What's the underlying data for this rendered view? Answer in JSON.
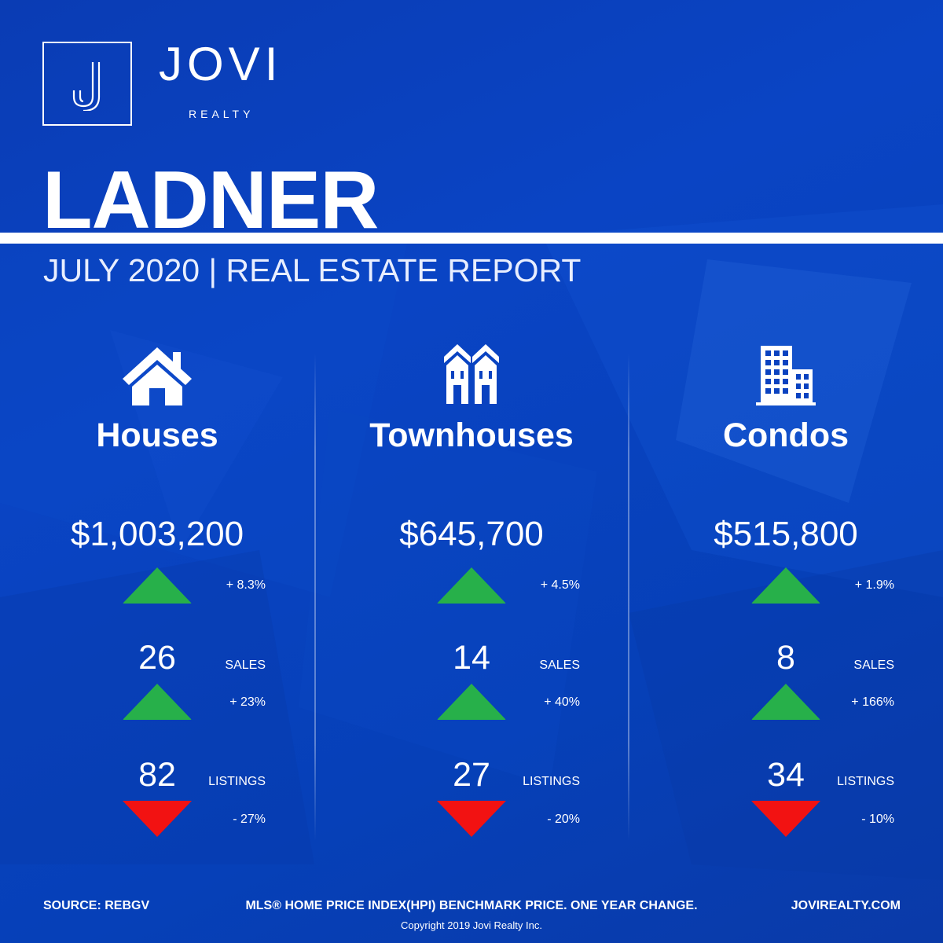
{
  "brand": {
    "name": "JOVI",
    "sub": "REALTY"
  },
  "title": "LADNER",
  "subtitle": "JULY 2020 | REAL ESTATE REPORT",
  "colors": {
    "background": "#0a3cb4",
    "up": "#27b04a",
    "down": "#f21212",
    "text": "#ffffff"
  },
  "columns": [
    {
      "icon": "house-icon",
      "name": "Houses",
      "price": "$1,003,200",
      "price_change": "+ 8.3%",
      "price_trend": "up",
      "sales": "26",
      "sales_label": "SALES",
      "sales_change": "+ 23%",
      "sales_trend": "up",
      "listings": "82",
      "listings_label": "LISTINGS",
      "listings_change": "- 27%",
      "listings_trend": "down"
    },
    {
      "icon": "townhouse-icon",
      "name": "Townhouses",
      "price": "$645,700",
      "price_change": "+ 4.5%",
      "price_trend": "up",
      "sales": "14",
      "sales_label": "SALES",
      "sales_change": "+ 40%",
      "sales_trend": "up",
      "listings": "27",
      "listings_label": "LISTINGS",
      "listings_change": "- 20%",
      "listings_trend": "down"
    },
    {
      "icon": "condo-building-icon",
      "name": "Condos",
      "price": "$515,800",
      "price_change": "+ 1.9%",
      "price_trend": "up",
      "sales": "8",
      "sales_label": "SALES",
      "sales_change": "+ 166%",
      "sales_trend": "up",
      "listings": "34",
      "listings_label": "LISTINGS",
      "listings_change": "- 10%",
      "listings_trend": "down"
    }
  ],
  "footer": {
    "source": "SOURCE:  REBGV",
    "note": "MLS® HOME PRICE INDEX(HPI) BENCHMARK PRICE. ONE YEAR CHANGE.",
    "website": "JOVIREALTY.COM",
    "copyright": "Copyright 2019 Jovi Realty Inc."
  }
}
